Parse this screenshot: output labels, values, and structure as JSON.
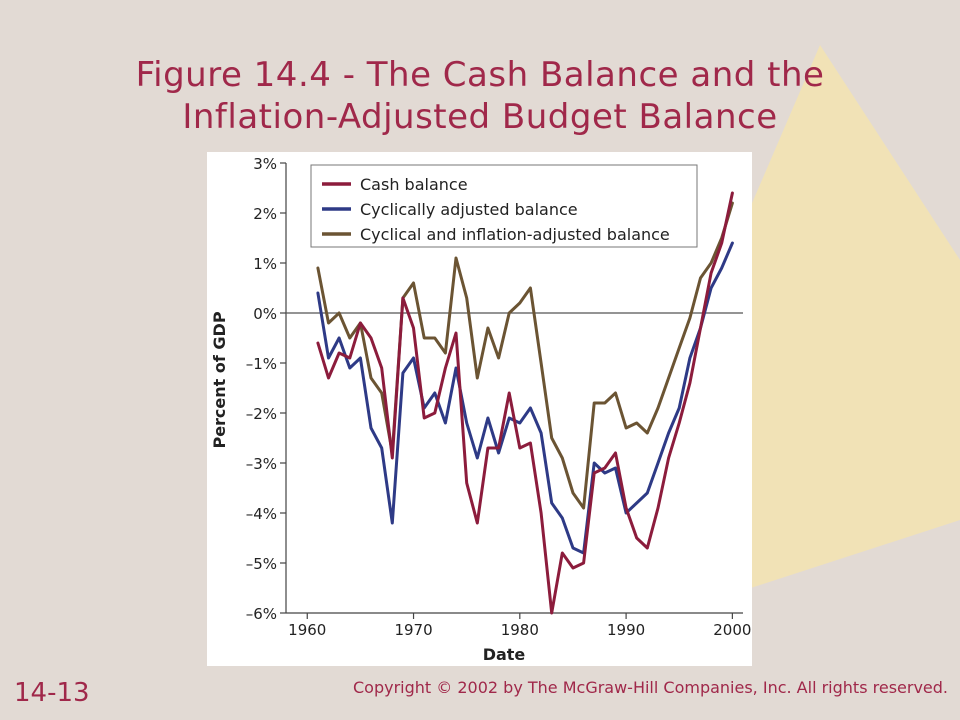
{
  "slide": {
    "title_line1": "Figure 14.4 - The Cash Balance and the",
    "title_line2": "Inflation-Adjusted Budget Balance",
    "slide_number": "14-13",
    "copyright": "Copyright © 2002 by The McGraw-Hill Companies, Inc.  All rights reserved.",
    "colors": {
      "background": "#e2dad4",
      "accent_shape": "#f1e2b6",
      "title": "#a0284a"
    }
  },
  "chart_data": {
    "type": "line",
    "title": "",
    "xlabel": "Date",
    "ylabel": "Percent of GDP",
    "xlim": [
      1958,
      2001
    ],
    "ylim": [
      -6,
      3
    ],
    "xticks": [
      1960,
      1970,
      1980,
      1990,
      2000
    ],
    "xtick_labels": [
      "1960",
      "1970",
      "1980",
      "1990",
      "2000"
    ],
    "yticks": [
      3,
      2,
      1,
      0,
      -1,
      -2,
      -3,
      -4,
      -5,
      -6
    ],
    "ytick_labels": [
      "3%",
      "2%",
      "1%",
      "0%",
      "–1%",
      "–2%",
      "–3%",
      "–4%",
      "–5%",
      "–6%"
    ],
    "zero_line": true,
    "grid": false,
    "legend_position": "top-left",
    "x": [
      1961,
      1962,
      1963,
      1964,
      1965,
      1966,
      1967,
      1968,
      1969,
      1970,
      1971,
      1972,
      1973,
      1974,
      1975,
      1976,
      1977,
      1978,
      1979,
      1980,
      1981,
      1982,
      1983,
      1984,
      1985,
      1986,
      1987,
      1988,
      1989,
      1990,
      1991,
      1992,
      1993,
      1994,
      1995,
      1996,
      1997,
      1998,
      1999,
      2000
    ],
    "series": [
      {
        "name": "Cash balance",
        "color": "#8c1c3c",
        "values": [
          -0.6,
          -1.3,
          -0.8,
          -0.9,
          -0.2,
          -0.5,
          -1.1,
          -2.9,
          0.3,
          -0.3,
          -2.1,
          -2.0,
          -1.1,
          -0.4,
          -3.4,
          -4.2,
          -2.7,
          -2.7,
          -1.6,
          -2.7,
          -2.6,
          -4.0,
          -6.0,
          -4.8,
          -5.1,
          -5.0,
          -3.2,
          -3.1,
          -2.8,
          -3.9,
          -4.5,
          -4.7,
          -3.9,
          -2.9,
          -2.2,
          -1.4,
          -0.3,
          0.8,
          1.4,
          2.4
        ]
      },
      {
        "name": "Cyclically adjusted balance",
        "color": "#2e3a86",
        "values": [
          0.4,
          -0.9,
          -0.5,
          -1.1,
          -0.9,
          -2.3,
          -2.7,
          -4.2,
          -1.2,
          -0.9,
          -1.9,
          -1.6,
          -2.2,
          -1.1,
          -2.2,
          -2.9,
          -2.1,
          -2.8,
          -2.1,
          -2.2,
          -1.9,
          -2.4,
          -3.8,
          -4.1,
          -4.7,
          -4.8,
          -3.0,
          -3.2,
          -3.1,
          -4.0,
          -3.8,
          -3.6,
          -3.0,
          -2.4,
          -1.9,
          -0.9,
          -0.3,
          0.5,
          0.9,
          1.4
        ]
      },
      {
        "name": "Cyclical and inflation-adjusted balance",
        "color": "#6b5433",
        "values": [
          0.9,
          -0.2,
          0.0,
          -0.5,
          -0.2,
          -1.3,
          -1.6,
          -2.8,
          0.3,
          0.6,
          -0.5,
          -0.5,
          -0.8,
          1.1,
          0.3,
          -1.3,
          -0.3,
          -0.9,
          0.0,
          0.2,
          0.5,
          -1.0,
          -2.5,
          -2.9,
          -3.6,
          -3.9,
          -1.8,
          -1.8,
          -1.6,
          -2.3,
          -2.2,
          -2.4,
          -1.9,
          -1.3,
          -0.7,
          -0.1,
          0.7,
          1.0,
          1.5,
          2.2
        ]
      }
    ]
  }
}
